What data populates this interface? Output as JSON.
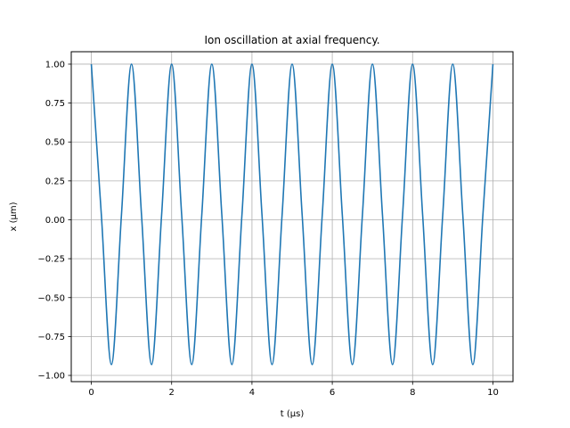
{
  "chart_data": {
    "type": "line",
    "title": "Ion oscillation at axial frequency.",
    "xlabel": "t (µs)",
    "ylabel": "x (µm)",
    "xlim": [
      -0.5,
      10.5
    ],
    "ylim": [
      -1.04,
      1.08
    ],
    "xticks": [
      0,
      2,
      4,
      6,
      8,
      10
    ],
    "xtick_labels": [
      "0",
      "2",
      "4",
      "6",
      "8",
      "10"
    ],
    "yticks": [
      -1.0,
      -0.75,
      -0.5,
      -0.25,
      0.0,
      0.25,
      0.5,
      0.75,
      1.0
    ],
    "ytick_labels": [
      "−1.00",
      "−0.75",
      "−0.50",
      "−0.25",
      "0.00",
      "0.25",
      "0.50",
      "0.75",
      "1.00"
    ],
    "grid": true,
    "series": [
      {
        "color": "#1f77b4",
        "x": [
          0,
          0.25,
          0.5,
          0.75,
          1.0,
          1.25,
          1.5,
          1.75,
          2.0,
          2.25,
          2.5,
          2.75,
          3.0,
          3.25,
          3.5,
          3.75,
          4.0,
          4.25,
          4.5,
          4.75,
          5.0,
          5.25,
          5.5,
          5.75,
          6.0,
          6.25,
          6.5,
          6.75,
          7.0,
          7.25,
          7.5,
          7.75,
          8.0,
          8.25,
          8.5,
          8.75,
          9.0,
          9.25,
          9.5,
          9.75,
          10.0
        ],
        "y": [
          1.0,
          0.03,
          -0.93,
          0.03,
          1.0,
          0.03,
          -0.93,
          0.03,
          1.0,
          0.03,
          -0.93,
          0.03,
          1.0,
          0.03,
          -0.93,
          0.03,
          1.0,
          0.03,
          -0.93,
          0.03,
          1.0,
          0.03,
          -0.93,
          0.03,
          1.0,
          0.03,
          -0.93,
          0.03,
          1.0,
          0.03,
          -0.93,
          0.03,
          1.0,
          0.03,
          -0.93,
          0.03,
          1.0,
          0.03,
          -0.93,
          0.03,
          1.0
        ]
      }
    ]
  }
}
